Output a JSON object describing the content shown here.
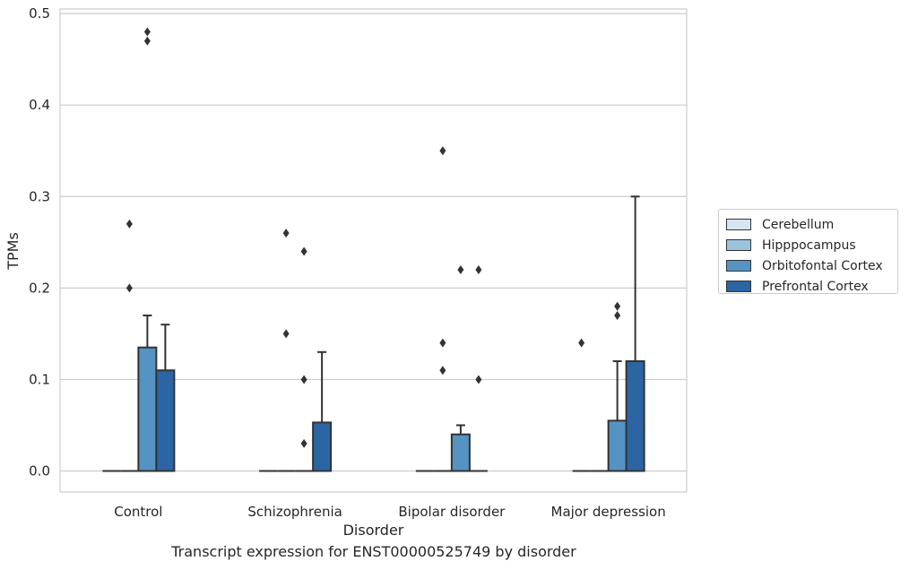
{
  "chart_data": {
    "type": "box",
    "title": "",
    "xlabel": "Disorder",
    "ylabel": "TPMs",
    "ylim": [
      -0.023,
      0.505
    ],
    "yticks": [
      "0.0",
      "0.1",
      "0.2",
      "0.3",
      "0.4",
      "0.5"
    ],
    "grid": "horizontal",
    "legend_position": "right",
    "categories": [
      "Control",
      "Schizophrenia",
      "Bipolar disorder",
      "Major depression"
    ],
    "series": [
      {
        "name": "Cerebellum",
        "color": "#d6e5f3",
        "boxes": [
          {
            "q1": 0,
            "median": 0,
            "q3": 0,
            "whisker_low": 0,
            "whisker_high": 0,
            "outliers": []
          },
          {
            "q1": 0,
            "median": 0,
            "q3": 0,
            "whisker_low": 0,
            "whisker_high": 0,
            "outliers": []
          },
          {
            "q1": 0,
            "median": 0,
            "q3": 0,
            "whisker_low": 0,
            "whisker_high": 0,
            "outliers": []
          },
          {
            "q1": 0,
            "median": 0,
            "q3": 0,
            "whisker_low": 0,
            "whisker_high": 0,
            "outliers": [
              0.14
            ]
          }
        ]
      },
      {
        "name": "Hipppocampus",
        "color": "#9ac4de",
        "boxes": [
          {
            "q1": 0,
            "median": 0,
            "q3": 0,
            "whisker_low": 0,
            "whisker_high": 0,
            "outliers": [
              0.2,
              0.27
            ]
          },
          {
            "q1": 0,
            "median": 0,
            "q3": 0,
            "whisker_low": 0,
            "whisker_high": 0,
            "outliers": [
              0.15,
              0.26
            ]
          },
          {
            "q1": 0,
            "median": 0,
            "q3": 0,
            "whisker_low": 0,
            "whisker_high": 0,
            "outliers": [
              0.11,
              0.14,
              0.35
            ]
          },
          {
            "q1": 0,
            "median": 0,
            "q3": 0,
            "whisker_low": 0,
            "whisker_high": 0,
            "outliers": []
          }
        ]
      },
      {
        "name": "Orbitofontal Cortex",
        "color": "#5593c3",
        "boxes": [
          {
            "q1": 0,
            "median": 0,
            "q3": 0.135,
            "whisker_low": 0,
            "whisker_high": 0.17,
            "outliers": [
              0.47,
              0.48
            ]
          },
          {
            "q1": 0,
            "median": 0,
            "q3": 0,
            "whisker_low": 0,
            "whisker_high": 0,
            "outliers": [
              0.03,
              0.1,
              0.24
            ]
          },
          {
            "q1": 0,
            "median": 0,
            "q3": 0.04,
            "whisker_low": 0,
            "whisker_high": 0.05,
            "outliers": [
              0.22
            ]
          },
          {
            "q1": 0,
            "median": 0,
            "q3": 0.055,
            "whisker_low": 0,
            "whisker_high": 0.12,
            "outliers": [
              0.17,
              0.18
            ]
          }
        ]
      },
      {
        "name": "Prefrontal Cortex",
        "color": "#2b65a3",
        "boxes": [
          {
            "q1": 0,
            "median": 0,
            "q3": 0.11,
            "whisker_low": 0,
            "whisker_high": 0.16,
            "outliers": []
          },
          {
            "q1": 0,
            "median": 0,
            "q3": 0.053,
            "whisker_low": 0,
            "whisker_high": 0.13,
            "outliers": []
          },
          {
            "q1": 0,
            "median": 0,
            "q3": 0,
            "whisker_low": 0,
            "whisker_high": 0,
            "outliers": [
              0.1,
              0.22
            ]
          },
          {
            "q1": 0,
            "median": 0,
            "q3": 0.12,
            "whisker_low": 0,
            "whisker_high": 0.3,
            "outliers": []
          }
        ]
      }
    ],
    "caption": "Transcript expression for ENST00000525749 by disorder"
  }
}
